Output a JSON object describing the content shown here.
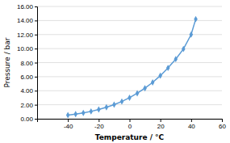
{
  "chart_data": {
    "type": "line",
    "xlabel": "Temperature / °C",
    "ylabel": "Pressure / bar",
    "x": [
      -40,
      -35,
      -30,
      -25,
      -20,
      -15,
      -10,
      -5,
      0,
      5,
      10,
      15,
      20,
      25,
      30,
      35,
      40,
      43
    ],
    "values": [
      0.51,
      0.67,
      0.84,
      1.05,
      1.32,
      1.64,
      2.01,
      2.46,
      3.0,
      3.63,
      4.35,
      5.18,
      6.14,
      7.24,
      8.5,
      9.94,
      12.0,
      14.2
    ],
    "color": "#5b9bd5",
    "marker": "diamond",
    "xlim": [
      -60,
      60
    ],
    "ylim": [
      0.0,
      16.0
    ],
    "xticks": [
      -40,
      -20,
      0,
      20,
      40,
      60
    ],
    "yticks": [
      {
        "value": 0.0,
        "label": "0.00"
      },
      {
        "value": 2.0,
        "label": "2.00"
      },
      {
        "value": 4.0,
        "label": "4.00"
      },
      {
        "value": 6.0,
        "label": "6.00"
      },
      {
        "value": 8.0,
        "label": "8.00"
      },
      {
        "value": 10.0,
        "label": "10.00"
      },
      {
        "value": 12.0,
        "label": "12.00"
      },
      {
        "value": 14.0,
        "label": "14.00"
      },
      {
        "value": 16.0,
        "label": "16.00"
      }
    ],
    "grid": "y"
  }
}
